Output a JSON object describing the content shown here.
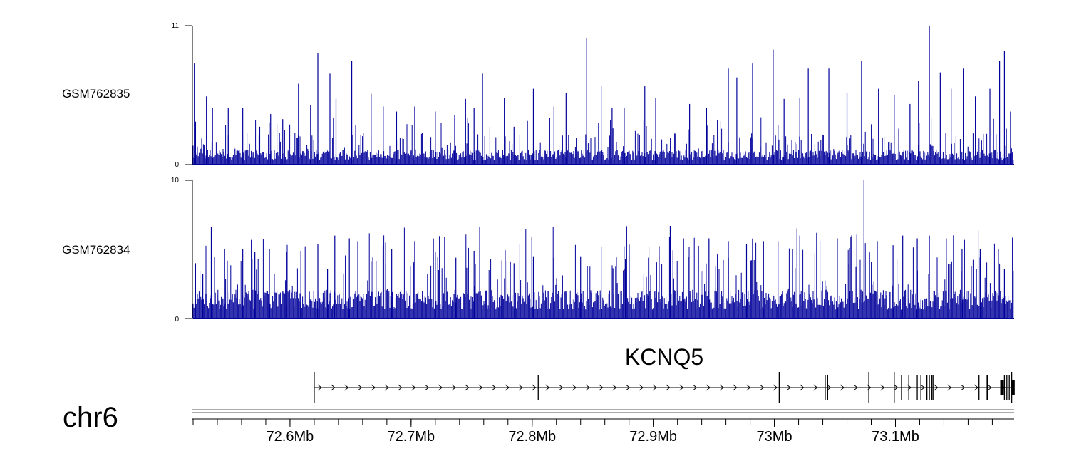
{
  "chart_data": {
    "type": "genome-browser",
    "region": {
      "chromosome": "chr6",
      "start_mb": 72.52,
      "end_mb": 73.198
    },
    "tracks": [
      {
        "name": "GSM762835",
        "type": "coverage",
        "color": "#00009b",
        "ylim": [
          0,
          11
        ],
        "y_ticks": [
          "0",
          "11"
        ],
        "baseline_level": 0.9,
        "peaks": [
          [
            72.521,
            8.0
          ],
          [
            72.522,
            3.4
          ],
          [
            72.531,
            5.4
          ],
          [
            72.536,
            4.5
          ],
          [
            72.549,
            4.5
          ],
          [
            72.561,
            4.5
          ],
          [
            72.575,
            3.0
          ],
          [
            72.584,
            4.0
          ],
          [
            72.594,
            3.6
          ],
          [
            72.607,
            6.4
          ],
          [
            72.617,
            4.7
          ],
          [
            72.623,
            8.8
          ],
          [
            72.633,
            7.2
          ],
          [
            72.638,
            5.2
          ],
          [
            72.651,
            8.2
          ],
          [
            72.667,
            5.6
          ],
          [
            72.677,
            4.6
          ],
          [
            72.688,
            4.2
          ],
          [
            72.703,
            4.6
          ],
          [
            72.72,
            4.2
          ],
          [
            72.736,
            3.9
          ],
          [
            72.745,
            5.2
          ],
          [
            72.752,
            4.5
          ],
          [
            72.759,
            7.2
          ],
          [
            72.777,
            5.3
          ],
          [
            72.785,
            3.0
          ],
          [
            72.801,
            6.0
          ],
          [
            72.818,
            4.6
          ],
          [
            72.828,
            5.7
          ],
          [
            72.845,
            10.0
          ],
          [
            72.857,
            6.2
          ],
          [
            72.866,
            4.5
          ],
          [
            72.876,
            4.5
          ],
          [
            72.893,
            6.2
          ],
          [
            72.902,
            5.3
          ],
          [
            72.93,
            4.8
          ],
          [
            72.944,
            4.5
          ],
          [
            72.962,
            7.6
          ],
          [
            72.969,
            6.9
          ],
          [
            72.982,
            8.0
          ],
          [
            72.999,
            9.1
          ],
          [
            73.008,
            5.2
          ],
          [
            73.021,
            5.3
          ],
          [
            73.028,
            7.6
          ],
          [
            73.045,
            7.6
          ],
          [
            73.06,
            5.7
          ],
          [
            73.072,
            8.2
          ],
          [
            73.086,
            6.0
          ],
          [
            73.099,
            5.5
          ],
          [
            73.112,
            4.8
          ],
          [
            73.119,
            6.6
          ],
          [
            73.128,
            11.0
          ],
          [
            73.137,
            7.3
          ],
          [
            73.146,
            6.0
          ],
          [
            73.156,
            7.6
          ],
          [
            73.166,
            5.4
          ],
          [
            73.178,
            6.0
          ],
          [
            73.186,
            8.2
          ],
          [
            73.19,
            9.0
          ],
          [
            73.195,
            4.2
          ]
        ]
      },
      {
        "name": "GSM762834",
        "type": "coverage",
        "color": "#00009b",
        "ylim": [
          0,
          10
        ],
        "y_ticks": [
          "0",
          "10"
        ],
        "baseline_level": 1.6,
        "peaks": [
          [
            72.522,
            4.0
          ],
          [
            72.528,
            3.2
          ],
          [
            72.535,
            6.6
          ],
          [
            72.546,
            5.0
          ],
          [
            72.561,
            5.0
          ],
          [
            72.571,
            4.8
          ],
          [
            72.583,
            5.0
          ],
          [
            72.597,
            4.8
          ],
          [
            72.609,
            4.9
          ],
          [
            72.623,
            5.4
          ],
          [
            72.631,
            3.6
          ],
          [
            72.637,
            6.0
          ],
          [
            72.649,
            5.8
          ],
          [
            72.656,
            5.6
          ],
          [
            72.667,
            4.1
          ],
          [
            72.679,
            5.5
          ],
          [
            72.684,
            5.0
          ],
          [
            72.703,
            5.6
          ],
          [
            72.72,
            4.8
          ],
          [
            72.737,
            4.4
          ],
          [
            72.752,
            4.9
          ],
          [
            72.775,
            4.2
          ],
          [
            72.785,
            4.0
          ],
          [
            72.801,
            4.5
          ],
          [
            72.818,
            4.4
          ],
          [
            72.84,
            4.5
          ],
          [
            72.857,
            5.2
          ],
          [
            72.877,
            4.3
          ],
          [
            72.896,
            4.4
          ],
          [
            72.914,
            6.7
          ],
          [
            72.925,
            5.8
          ],
          [
            72.946,
            5.8
          ],
          [
            72.962,
            5.6
          ],
          [
            72.977,
            5.4
          ],
          [
            72.991,
            5.6
          ],
          [
            73.003,
            5.6
          ],
          [
            73.015,
            5.0
          ],
          [
            73.021,
            6.0
          ],
          [
            73.035,
            5.0
          ],
          [
            73.052,
            5.8
          ],
          [
            73.062,
            5.1
          ],
          [
            73.074,
            10.0
          ],
          [
            73.085,
            5.6
          ],
          [
            73.098,
            5.3
          ],
          [
            73.106,
            6.0
          ],
          [
            73.118,
            5.8
          ],
          [
            73.128,
            6.0
          ],
          [
            73.142,
            5.8
          ],
          [
            73.155,
            5.0
          ],
          [
            73.17,
            5.0
          ],
          [
            73.185,
            5.0
          ],
          [
            73.19,
            3.6
          ],
          [
            73.197,
            5.0
          ]
        ]
      }
    ],
    "gene": {
      "name": "KCNQ5",
      "strand": "+",
      "start_mb": 72.62,
      "end_mb": 73.198,
      "exons_mb": [
        72.62,
        72.805,
        73.004,
        73.042,
        73.044,
        73.078,
        73.099,
        73.105,
        73.111,
        73.118,
        73.121,
        73.126,
        73.128,
        73.13,
        73.131,
        73.169,
        73.175,
        73.176,
        73.188,
        73.19,
        73.192,
        73.194,
        73.196,
        73.197
      ]
    },
    "x_axis": {
      "tick_labels": [
        "72.6Mb",
        "72.7Mb",
        "72.8Mb",
        "72.9Mb",
        "73Mb",
        "73.1Mb"
      ],
      "tick_values_mb": [
        72.6,
        72.7,
        72.8,
        72.9,
        73.0,
        73.1
      ],
      "minor_step_mb": 0.02
    }
  }
}
